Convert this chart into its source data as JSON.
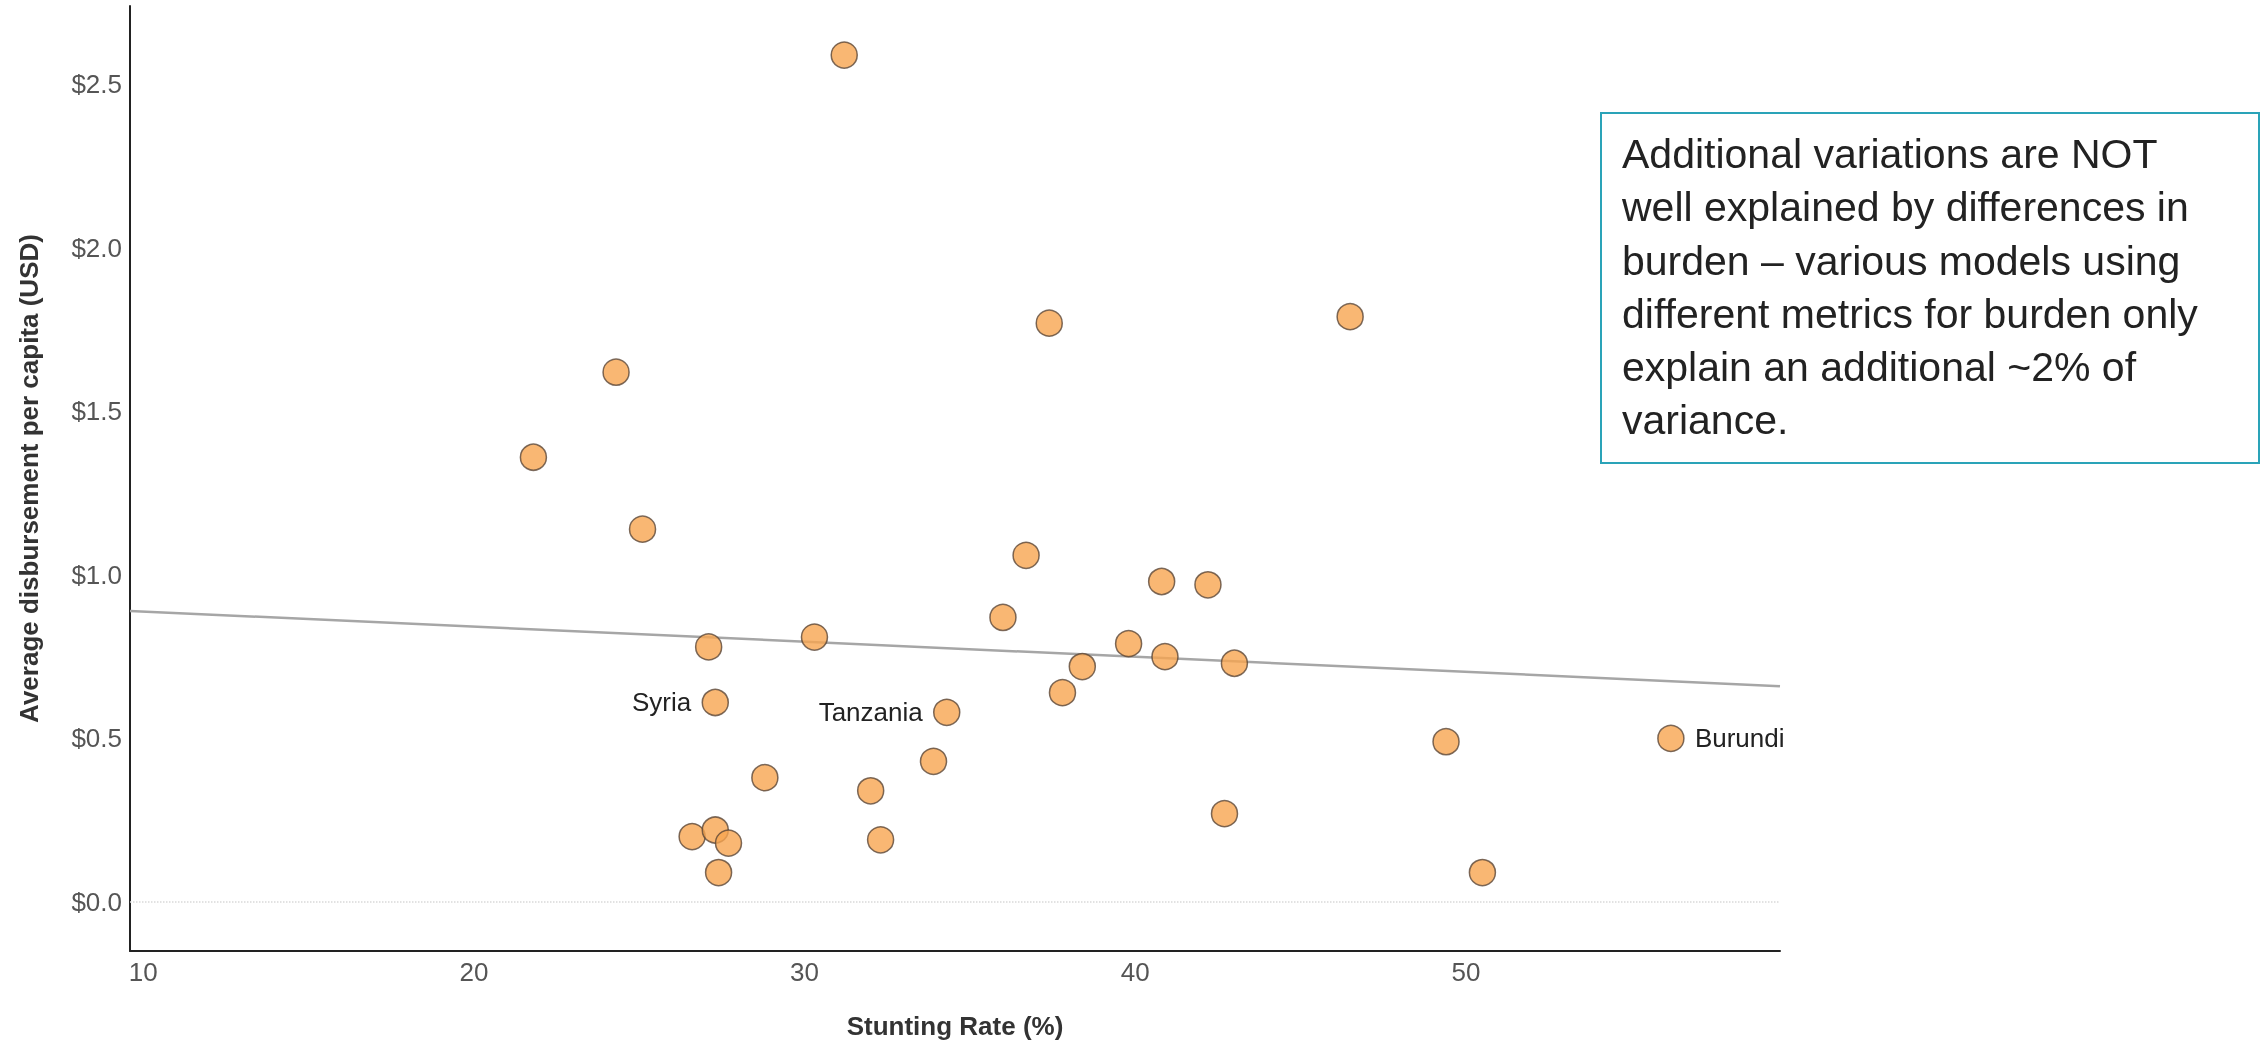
{
  "chart_data": {
    "type": "scatter",
    "xlabel": "Stunting Rate (%)",
    "ylabel": "Average disbursement per capita (USD)",
    "xlim": [
      9.6,
      59.5
    ],
    "xticks": [
      10,
      20,
      30,
      40,
      50
    ],
    "ylim": [
      -0.15,
      2.74
    ],
    "yticks": [
      {
        "value": 0,
        "label": "$0.0"
      },
      {
        "value": 0.5,
        "label": "$0.5"
      },
      {
        "value": 1,
        "label": "$1.0"
      },
      {
        "value": 1.5,
        "label": "$1.5"
      },
      {
        "value": 2,
        "label": "$2.0"
      },
      {
        "value": 2.5,
        "label": "$2.5"
      }
    ],
    "grid": false,
    "marker": "circle",
    "series": [
      {
        "color": "#f7a550",
        "x": [
          31.2,
          21.8,
          24.3,
          25.1,
          27.1,
          27.3,
          26.6,
          27.3,
          27.7,
          27.4,
          28.8,
          30.3,
          32.0,
          32.3,
          33.9,
          34.3,
          36.0,
          36.7,
          37.4,
          37.8,
          38.4,
          39.8,
          40.8,
          40.9,
          42.2,
          42.7,
          43.0,
          46.5,
          49.4,
          50.5,
          56.2
        ],
        "values": [
          2.59,
          1.36,
          1.62,
          1.14,
          0.78,
          0.61,
          0.2,
          0.22,
          0.18,
          0.09,
          0.38,
          0.81,
          0.34,
          0.19,
          0.43,
          0.58,
          0.87,
          1.06,
          1.77,
          0.64,
          0.72,
          0.79,
          0.98,
          0.75,
          0.97,
          0.27,
          0.73,
          1.79,
          0.49,
          0.09,
          0.5
        ]
      },
      {
        "type": "line",
        "color": "#a6a6a6",
        "marker": "none",
        "x": [
          9.6,
          59.5
        ],
        "values": [
          0.89,
          0.66
        ]
      }
    ],
    "ref_lines": [
      {
        "axis": "y",
        "value": 0,
        "color": "#d9d9d9",
        "line_style": "dotted"
      }
    ],
    "annotations": [
      {
        "text": "Syria",
        "x": 27.3,
        "y": 0.61
      },
      {
        "text": "Tanzania",
        "x": 34.3,
        "y": 0.58
      },
      {
        "text": "Burundi",
        "x": 56.2,
        "y": 0.5
      },
      "Additional variations are NOT well explained by differences in burden – various models using different metrics for burden only explain an additional ~2% of variance."
    ]
  }
}
